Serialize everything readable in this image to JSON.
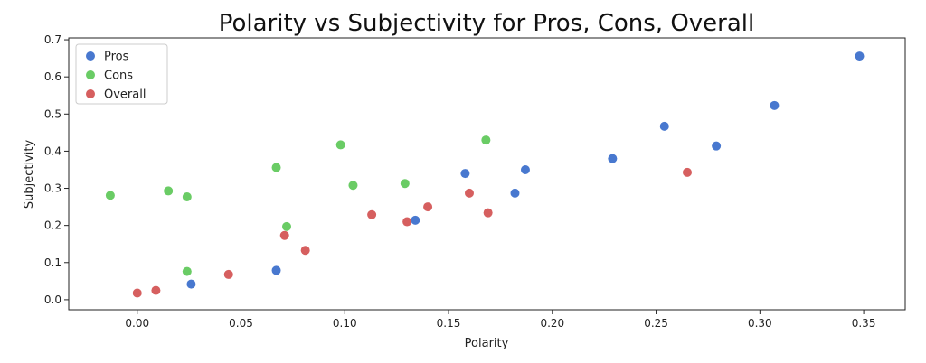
{
  "chart_data": {
    "type": "scatter",
    "title": "Polarity vs Subjectivity for Pros, Cons, Overall",
    "xlabel": "Polarity",
    "ylabel": "Subjectivity",
    "xlim": [
      -0.033,
      0.37
    ],
    "ylim": [
      -0.027,
      0.705
    ],
    "xticks": [
      0.0,
      0.05,
      0.1,
      0.15,
      0.2,
      0.25,
      0.3,
      0.35
    ],
    "xtick_labels": [
      "0.00",
      "0.05",
      "0.10",
      "0.15",
      "0.20",
      "0.25",
      "0.30",
      "0.35"
    ],
    "yticks": [
      0.0,
      0.1,
      0.2,
      0.3,
      0.4,
      0.5,
      0.6,
      0.7
    ],
    "ytick_labels": [
      "0.0",
      "0.1",
      "0.2",
      "0.3",
      "0.4",
      "0.5",
      "0.6",
      "0.7"
    ],
    "grid": false,
    "legend_position": "top-left",
    "series": [
      {
        "name": "Pros",
        "color": "#4878cf",
        "points": [
          {
            "x": 0.026,
            "y": 0.042
          },
          {
            "x": 0.067,
            "y": 0.079
          },
          {
            "x": 0.134,
            "y": 0.214
          },
          {
            "x": 0.158,
            "y": 0.34
          },
          {
            "x": 0.182,
            "y": 0.287
          },
          {
            "x": 0.187,
            "y": 0.35
          },
          {
            "x": 0.229,
            "y": 0.38
          },
          {
            "x": 0.254,
            "y": 0.467
          },
          {
            "x": 0.279,
            "y": 0.414
          },
          {
            "x": 0.307,
            "y": 0.523
          },
          {
            "x": 0.348,
            "y": 0.656
          }
        ]
      },
      {
        "name": "Cons",
        "color": "#6acc65",
        "points": [
          {
            "x": -0.013,
            "y": 0.281
          },
          {
            "x": 0.015,
            "y": 0.293
          },
          {
            "x": 0.024,
            "y": 0.277
          },
          {
            "x": 0.024,
            "y": 0.076
          },
          {
            "x": 0.067,
            "y": 0.356
          },
          {
            "x": 0.072,
            "y": 0.197
          },
          {
            "x": 0.098,
            "y": 0.417
          },
          {
            "x": 0.104,
            "y": 0.308
          },
          {
            "x": 0.129,
            "y": 0.313
          },
          {
            "x": 0.168,
            "y": 0.43
          }
        ]
      },
      {
        "name": "Overall",
        "color": "#d65f5f",
        "points": [
          {
            "x": 0.0,
            "y": 0.018
          },
          {
            "x": 0.009,
            "y": 0.025
          },
          {
            "x": 0.044,
            "y": 0.068
          },
          {
            "x": 0.071,
            "y": 0.173
          },
          {
            "x": 0.081,
            "y": 0.133
          },
          {
            "x": 0.113,
            "y": 0.229
          },
          {
            "x": 0.13,
            "y": 0.21
          },
          {
            "x": 0.14,
            "y": 0.25
          },
          {
            "x": 0.16,
            "y": 0.287
          },
          {
            "x": 0.169,
            "y": 0.234
          },
          {
            "x": 0.265,
            "y": 0.343
          }
        ]
      }
    ]
  }
}
